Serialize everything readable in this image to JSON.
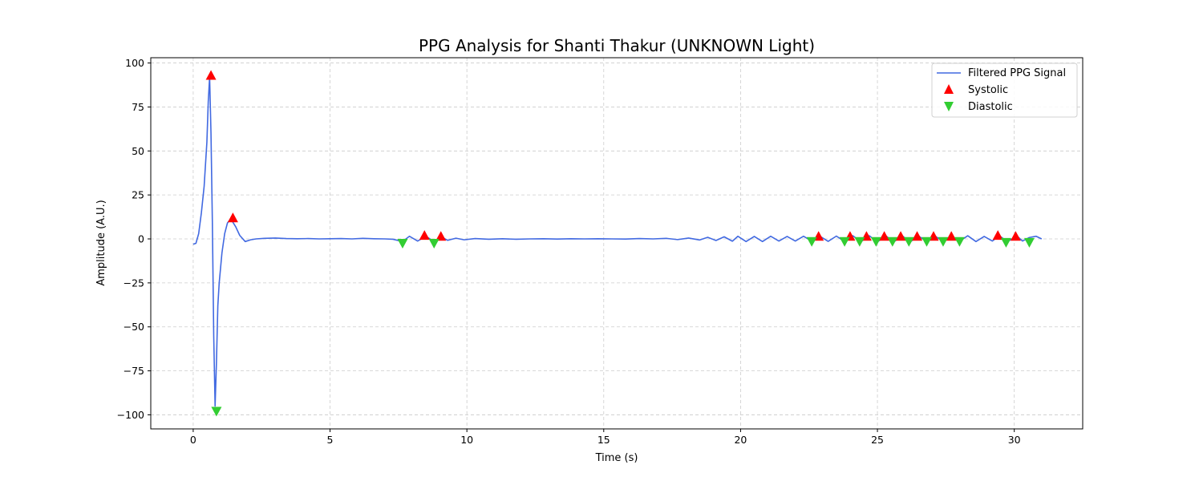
{
  "chart_data": {
    "type": "line",
    "title": "PPG Analysis for Shanti Thakur (UNKNOWN Light)",
    "xlabel": "Time (s)",
    "ylabel": "Amplitude (A.U.)",
    "xlim": [
      -1.55,
      32.5
    ],
    "ylim": [
      -108,
      103
    ],
    "x_ticks": [
      0,
      5,
      10,
      15,
      20,
      25,
      30
    ],
    "y_ticks": [
      -100,
      -75,
      -50,
      -25,
      0,
      25,
      50,
      75,
      100
    ],
    "grid": true,
    "legend_position": "top-right",
    "colors": {
      "signal": "#4169e1",
      "systolic": "#ff0000",
      "diastolic": "#32cd32"
    },
    "series": [
      {
        "name": "Filtered PPG Signal",
        "x": [
          0.0,
          0.1,
          0.2,
          0.3,
          0.4,
          0.5,
          0.55,
          0.6,
          0.65,
          0.7,
          0.75,
          0.8,
          0.85,
          0.9,
          0.95,
          1.05,
          1.15,
          1.25,
          1.35,
          1.45,
          1.55,
          1.7,
          1.9,
          2.1,
          2.3,
          2.6,
          3.0,
          3.4,
          3.8,
          4.2,
          4.6,
          5.0,
          5.4,
          5.8,
          6.2,
          6.6,
          7.0,
          7.3,
          7.65,
          7.9,
          8.2,
          8.5,
          8.8,
          9.05,
          9.3,
          9.6,
          9.9,
          10.3,
          10.8,
          11.3,
          11.8,
          12.3,
          12.8,
          13.3,
          13.8,
          14.3,
          14.8,
          15.3,
          15.8,
          16.3,
          16.8,
          17.3,
          17.7,
          18.1,
          18.5,
          18.8,
          19.1,
          19.4,
          19.7,
          19.9,
          20.2,
          20.5,
          20.8,
          21.1,
          21.4,
          21.7,
          22.0,
          22.3,
          22.6,
          22.9,
          23.2,
          23.5,
          23.8,
          24.1,
          24.4,
          24.7,
          25.0,
          25.3,
          25.6,
          25.9,
          26.2,
          26.5,
          26.8,
          27.1,
          27.4,
          27.7,
          28.0,
          28.3,
          28.6,
          28.9,
          29.2,
          29.45,
          29.75,
          30.1,
          30.3,
          30.55,
          30.8,
          31.0
        ],
        "y": [
          -3,
          -2.5,
          3,
          15,
          30,
          55,
          78,
          92,
          60,
          10,
          -55,
          -95,
          -70,
          -38,
          -25,
          -8,
          3,
          9,
          11,
          9.5,
          7,
          2,
          -1.5,
          -0.5,
          0,
          0.3,
          0.5,
          0.2,
          0.1,
          0.2,
          0,
          0.1,
          0.2,
          0,
          0.3,
          0.1,
          0,
          -0.2,
          -1.5,
          1.5,
          -1.2,
          1.5,
          -1.5,
          1.2,
          -0.8,
          0.4,
          -0.5,
          0.2,
          -0.2,
          0.1,
          -0.2,
          0,
          0.1,
          -0.1,
          0.1,
          0,
          0.1,
          0,
          -0.1,
          0.2,
          0,
          0.3,
          -0.4,
          0.5,
          -0.6,
          0.9,
          -0.9,
          1.2,
          -1.3,
          1.5,
          -1.5,
          1.4,
          -1.5,
          1.5,
          -1.2,
          1.4,
          -1.2,
          1.5,
          -1.3,
          1.5,
          -1.4,
          1.6,
          -1.5,
          1.8,
          -1.6,
          1.8,
          -1.7,
          1.8,
          -1.7,
          1.8,
          -1.7,
          1.7,
          -1.6,
          1.7,
          -1.6,
          1.6,
          -1.4,
          1.8,
          -1.5,
          1.4,
          -1.2,
          1.8,
          -1.5,
          1.6,
          -1.2,
          0.8,
          1.5,
          0
        ]
      },
      {
        "name": "Systolic",
        "marker": "triangle-up",
        "x": [
          0.65,
          1.45,
          8.45,
          9.05,
          22.85,
          24.0,
          24.6,
          25.25,
          25.85,
          26.45,
          27.05,
          27.7,
          29.4,
          30.05
        ],
        "y": [
          93,
          12,
          2,
          1.5,
          1.5,
          1.5,
          1.5,
          1.5,
          1.5,
          1.5,
          1.5,
          1.5,
          2,
          1.5
        ]
      },
      {
        "name": "Diastolic",
        "marker": "triangle-down",
        "x": [
          0.85,
          7.65,
          8.8,
          22.6,
          23.8,
          24.35,
          24.95,
          25.55,
          26.15,
          26.8,
          27.4,
          28.0,
          29.7,
          30.55
        ],
        "y": [
          -98,
          -2.5,
          -2.5,
          -1.5,
          -1.5,
          -1.5,
          -1.5,
          -1.5,
          -1.5,
          -1.5,
          -1.5,
          -1.5,
          -2,
          -2
        ]
      }
    ]
  }
}
